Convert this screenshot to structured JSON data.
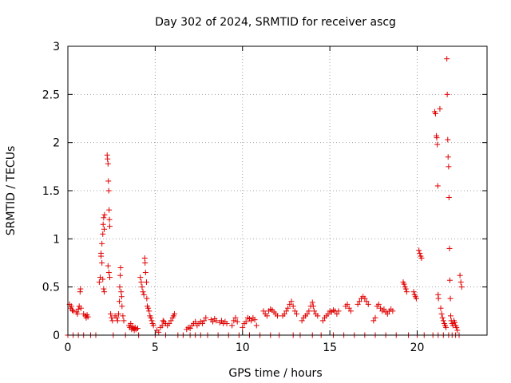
{
  "chart_data": {
    "type": "scatter",
    "title": "Day 302 of 2024, SRMTID for receiver ascg",
    "xlabel": "GPS time / hours",
    "ylabel": "SRMTID / TECUs",
    "xlim": [
      0,
      24
    ],
    "ylim": [
      0,
      3
    ],
    "xticks": [
      0,
      5,
      10,
      15,
      20
    ],
    "yticks": [
      0,
      0.5,
      1,
      1.5,
      2,
      2.5,
      3
    ],
    "grid": true,
    "marker": "+",
    "color": "#e00000",
    "series": [
      {
        "name": "SRMTID",
        "points": [
          [
            0.1,
            0.32
          ],
          [
            0.15,
            0.28
          ],
          [
            0.2,
            0.3
          ],
          [
            0.25,
            0.26
          ],
          [
            0.3,
            0.25
          ],
          [
            0.5,
            0.24
          ],
          [
            0.55,
            0.22
          ],
          [
            0.6,
            0.27
          ],
          [
            0.65,
            0.3
          ],
          [
            0.7,
            0.45
          ],
          [
            0.72,
            0.48
          ],
          [
            0.75,
            0.28
          ],
          [
            0.9,
            0.22
          ],
          [
            1.0,
            0.2
          ],
          [
            1.05,
            0.18
          ],
          [
            1.1,
            0.21
          ],
          [
            1.15,
            0.19
          ],
          [
            1.8,
            0.55
          ],
          [
            1.85,
            0.6
          ],
          [
            1.9,
            0.85
          ],
          [
            1.95,
            0.95
          ],
          [
            2.0,
            1.05
          ],
          [
            2.02,
            1.15
          ],
          [
            2.05,
            1.22
          ],
          [
            2.08,
            1.1
          ],
          [
            2.1,
            1.25
          ],
          [
            1.9,
            0.82
          ],
          [
            1.95,
            0.75
          ],
          [
            2.0,
            0.58
          ],
          [
            2.05,
            0.48
          ],
          [
            2.08,
            0.45
          ],
          [
            2.25,
            1.87
          ],
          [
            2.27,
            1.83
          ],
          [
            2.3,
            1.78
          ],
          [
            2.32,
            1.6
          ],
          [
            2.34,
            1.5
          ],
          [
            2.36,
            1.3
          ],
          [
            2.38,
            1.2
          ],
          [
            2.4,
            1.13
          ],
          [
            2.3,
            0.72
          ],
          [
            2.35,
            0.65
          ],
          [
            2.4,
            0.6
          ],
          [
            2.45,
            0.22
          ],
          [
            2.5,
            0.18
          ],
          [
            2.55,
            0.15
          ],
          [
            2.7,
            0.2
          ],
          [
            2.8,
            0.18
          ],
          [
            2.85,
            0.15
          ],
          [
            2.9,
            0.22
          ],
          [
            2.95,
            0.35
          ],
          [
            2.97,
            0.5
          ],
          [
            3.0,
            0.62
          ],
          [
            3.02,
            0.7
          ],
          [
            3.05,
            0.45
          ],
          [
            3.08,
            0.4
          ],
          [
            3.1,
            0.3
          ],
          [
            3.15,
            0.2
          ],
          [
            3.2,
            0.15
          ],
          [
            3.5,
            0.1
          ],
          [
            3.55,
            0.08
          ],
          [
            3.6,
            0.12
          ],
          [
            3.65,
            0.06
          ],
          [
            3.7,
            0.09
          ],
          [
            3.75,
            0.07
          ],
          [
            3.8,
            0.05
          ],
          [
            3.85,
            0.08
          ],
          [
            3.9,
            0.06
          ],
          [
            4.0,
            0.07
          ],
          [
            4.15,
            0.6
          ],
          [
            4.2,
            0.55
          ],
          [
            4.25,
            0.5
          ],
          [
            4.3,
            0.45
          ],
          [
            4.35,
            0.42
          ],
          [
            4.4,
            0.8
          ],
          [
            4.42,
            0.75
          ],
          [
            4.45,
            0.65
          ],
          [
            4.5,
            0.55
          ],
          [
            4.52,
            0.38
          ],
          [
            4.55,
            0.3
          ],
          [
            4.6,
            0.28
          ],
          [
            4.65,
            0.25
          ],
          [
            4.7,
            0.2
          ],
          [
            4.75,
            0.18
          ],
          [
            4.8,
            0.15
          ],
          [
            4.85,
            0.12
          ],
          [
            4.9,
            0.1
          ],
          [
            5.1,
            0.05
          ],
          [
            5.2,
            0.03
          ],
          [
            5.3,
            0.08
          ],
          [
            5.4,
            0.1
          ],
          [
            5.45,
            0.15
          ],
          [
            5.5,
            0.14
          ],
          [
            5.6,
            0.12
          ],
          [
            5.7,
            0.1
          ],
          [
            5.8,
            0.12
          ],
          [
            5.9,
            0.15
          ],
          [
            6.0,
            0.18
          ],
          [
            6.05,
            0.2
          ],
          [
            6.1,
            0.22
          ],
          [
            6.8,
            0.06
          ],
          [
            6.9,
            0.08
          ],
          [
            7.0,
            0.07
          ],
          [
            7.1,
            0.1
          ],
          [
            7.2,
            0.12
          ],
          [
            7.3,
            0.14
          ],
          [
            7.4,
            0.1
          ],
          [
            7.5,
            0.12
          ],
          [
            7.6,
            0.14
          ],
          [
            7.7,
            0.12
          ],
          [
            7.8,
            0.15
          ],
          [
            7.9,
            0.18
          ],
          [
            8.2,
            0.16
          ],
          [
            8.3,
            0.14
          ],
          [
            8.4,
            0.17
          ],
          [
            8.5,
            0.15
          ],
          [
            8.7,
            0.13
          ],
          [
            8.8,
            0.15
          ],
          [
            8.9,
            0.12
          ],
          [
            9.0,
            0.14
          ],
          [
            9.1,
            0.12
          ],
          [
            9.4,
            0.1
          ],
          [
            9.5,
            0.15
          ],
          [
            9.6,
            0.18
          ],
          [
            9.7,
            0.14
          ],
          [
            10.0,
            0.08
          ],
          [
            10.1,
            0.12
          ],
          [
            10.2,
            0.14
          ],
          [
            10.3,
            0.18
          ],
          [
            10.4,
            0.17
          ],
          [
            10.5,
            0.15
          ],
          [
            10.6,
            0.18
          ],
          [
            10.7,
            0.16
          ],
          [
            10.8,
            0.1
          ],
          [
            11.2,
            0.25
          ],
          [
            11.3,
            0.22
          ],
          [
            11.4,
            0.2
          ],
          [
            11.5,
            0.25
          ],
          [
            11.6,
            0.27
          ],
          [
            11.7,
            0.26
          ],
          [
            11.8,
            0.24
          ],
          [
            11.9,
            0.22
          ],
          [
            12.0,
            0.2
          ],
          [
            12.3,
            0.2
          ],
          [
            12.4,
            0.22
          ],
          [
            12.5,
            0.25
          ],
          [
            12.6,
            0.28
          ],
          [
            12.7,
            0.32
          ],
          [
            12.8,
            0.35
          ],
          [
            12.9,
            0.3
          ],
          [
            13.0,
            0.25
          ],
          [
            13.1,
            0.22
          ],
          [
            13.4,
            0.15
          ],
          [
            13.5,
            0.18
          ],
          [
            13.6,
            0.2
          ],
          [
            13.7,
            0.22
          ],
          [
            13.8,
            0.25
          ],
          [
            13.9,
            0.3
          ],
          [
            14.0,
            0.34
          ],
          [
            14.05,
            0.3
          ],
          [
            14.1,
            0.25
          ],
          [
            14.2,
            0.22
          ],
          [
            14.3,
            0.2
          ],
          [
            14.6,
            0.15
          ],
          [
            14.7,
            0.18
          ],
          [
            14.8,
            0.2
          ],
          [
            14.9,
            0.22
          ],
          [
            15.0,
            0.25
          ],
          [
            15.1,
            0.24
          ],
          [
            15.2,
            0.26
          ],
          [
            15.3,
            0.25
          ],
          [
            15.4,
            0.22
          ],
          [
            15.5,
            0.25
          ],
          [
            15.9,
            0.3
          ],
          [
            16.0,
            0.32
          ],
          [
            16.1,
            0.28
          ],
          [
            16.2,
            0.25
          ],
          [
            16.6,
            0.32
          ],
          [
            16.7,
            0.35
          ],
          [
            16.8,
            0.38
          ],
          [
            16.9,
            0.4
          ],
          [
            17.0,
            0.38
          ],
          [
            17.1,
            0.35
          ],
          [
            17.2,
            0.32
          ],
          [
            17.5,
            0.15
          ],
          [
            17.6,
            0.18
          ],
          [
            17.7,
            0.3
          ],
          [
            17.8,
            0.32
          ],
          [
            17.9,
            0.28
          ],
          [
            18.0,
            0.25
          ],
          [
            18.1,
            0.27
          ],
          [
            18.2,
            0.24
          ],
          [
            18.3,
            0.22
          ],
          [
            18.4,
            0.25
          ],
          [
            18.5,
            0.27
          ],
          [
            18.6,
            0.25
          ],
          [
            19.2,
            0.55
          ],
          [
            19.25,
            0.53
          ],
          [
            19.3,
            0.5
          ],
          [
            19.35,
            0.48
          ],
          [
            19.4,
            0.45
          ],
          [
            19.8,
            0.45
          ],
          [
            19.85,
            0.42
          ],
          [
            19.9,
            0.4
          ],
          [
            19.95,
            0.38
          ],
          [
            20.1,
            0.88
          ],
          [
            20.15,
            0.85
          ],
          [
            20.2,
            0.82
          ],
          [
            20.25,
            0.8
          ],
          [
            21.0,
            2.32
          ],
          [
            21.05,
            2.3
          ],
          [
            21.1,
            2.07
          ],
          [
            21.12,
            2.05
          ],
          [
            21.15,
            1.98
          ],
          [
            21.18,
            1.55
          ],
          [
            21.2,
            0.42
          ],
          [
            21.22,
            0.38
          ],
          [
            21.3,
            2.35
          ],
          [
            21.35,
            0.28
          ],
          [
            21.4,
            0.22
          ],
          [
            21.45,
            0.18
          ],
          [
            21.5,
            0.15
          ],
          [
            21.55,
            0.12
          ],
          [
            21.6,
            0.1
          ],
          [
            21.65,
            0.08
          ],
          [
            21.7,
            2.87
          ],
          [
            21.72,
            2.5
          ],
          [
            21.75,
            2.03
          ],
          [
            21.77,
            1.85
          ],
          [
            21.8,
            1.75
          ],
          [
            21.82,
            1.43
          ],
          [
            21.85,
            0.9
          ],
          [
            21.87,
            0.57
          ],
          [
            21.9,
            0.38
          ],
          [
            21.92,
            0.2
          ],
          [
            21.95,
            0.15
          ],
          [
            22.0,
            0.12
          ],
          [
            22.05,
            0.1
          ],
          [
            22.1,
            0.15
          ],
          [
            22.15,
            0.13
          ],
          [
            22.2,
            0.1
          ],
          [
            22.25,
            0.08
          ],
          [
            22.3,
            0.05
          ],
          [
            22.45,
            0.62
          ],
          [
            22.5,
            0.55
          ],
          [
            22.55,
            0.5
          ],
          [
            0.0,
            0
          ],
          [
            0.3,
            0
          ],
          [
            0.6,
            0
          ],
          [
            0.9,
            0
          ],
          [
            1.3,
            0
          ],
          [
            1.6,
            0
          ],
          [
            2.6,
            0
          ],
          [
            3.3,
            0
          ],
          [
            4.05,
            0
          ],
          [
            5.0,
            0
          ],
          [
            5.6,
            0
          ],
          [
            6.3,
            0
          ],
          [
            6.6,
            0
          ],
          [
            7.0,
            0
          ],
          [
            7.3,
            0
          ],
          [
            7.6,
            0
          ],
          [
            8.0,
            0
          ],
          [
            8.6,
            0
          ],
          [
            9.2,
            0
          ],
          [
            9.8,
            0
          ],
          [
            10.4,
            0
          ],
          [
            11.0,
            0
          ],
          [
            11.6,
            0
          ],
          [
            12.1,
            0
          ],
          [
            12.9,
            0
          ],
          [
            13.3,
            0
          ],
          [
            14.0,
            0
          ],
          [
            14.5,
            0
          ],
          [
            15.2,
            0
          ],
          [
            15.8,
            0
          ],
          [
            16.4,
            0
          ],
          [
            17.0,
            0
          ],
          [
            17.6,
            0
          ],
          [
            18.2,
            0
          ],
          [
            18.8,
            0
          ],
          [
            19.5,
            0
          ],
          [
            20.0,
            0
          ],
          [
            20.4,
            0
          ],
          [
            20.9,
            0
          ],
          [
            21.2,
            0
          ],
          [
            21.5,
            0
          ],
          [
            21.8,
            0
          ],
          [
            22.0,
            0
          ],
          [
            22.2,
            0
          ],
          [
            22.4,
            0
          ]
        ]
      }
    ]
  }
}
